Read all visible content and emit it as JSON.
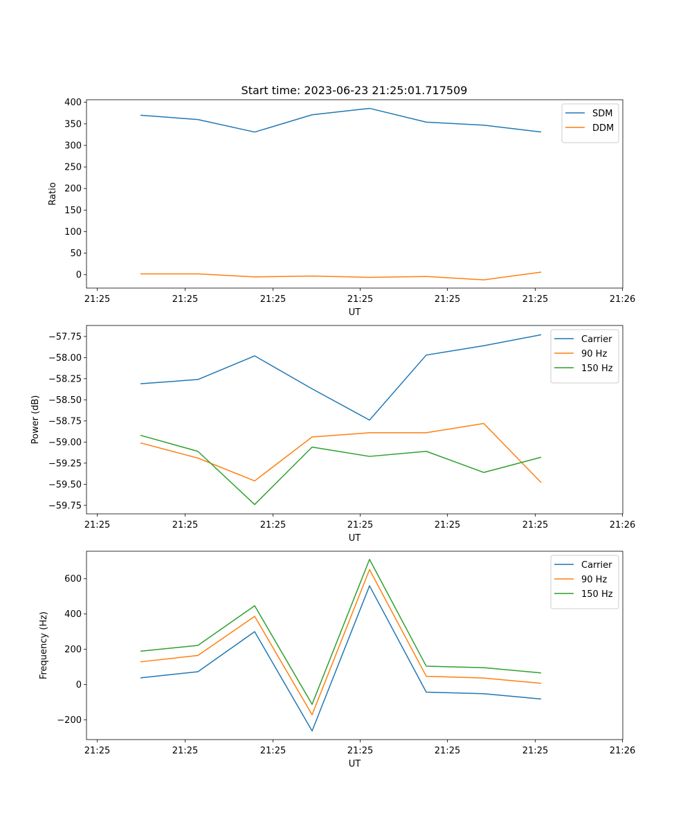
{
  "title": "Start time: 2023-06-23 21:25:01.717509",
  "colors": {
    "blue": "#1f77b4",
    "orange": "#ff7f0e",
    "green": "#2ca02c"
  },
  "chart_data": [
    {
      "type": "line",
      "ylabel": "Ratio",
      "xlabel": "UT",
      "x_tick_labels": [
        "21:25",
        "21:25",
        "21:25",
        "21:25",
        "21:25",
        "21:25",
        "21:25",
        "21:26"
      ],
      "y_ticks": [
        0,
        50,
        100,
        150,
        200,
        250,
        300,
        350,
        400
      ],
      "y_tick_labels": [
        "0",
        "50",
        "100",
        "150",
        "200",
        "250",
        "300",
        "350",
        "400"
      ],
      "ylim": [
        -31,
        406
      ],
      "legend": "top-right",
      "series": [
        {
          "name": "SDM",
          "color": "blue",
          "values": [
            370,
            360,
            331,
            371,
            386,
            354,
            347,
            331
          ]
        },
        {
          "name": "DDM",
          "color": "orange",
          "values": [
            2,
            2,
            -5,
            -3,
            -6,
            -4,
            -12,
            6
          ]
        }
      ]
    },
    {
      "type": "line",
      "ylabel": "Power (dB)",
      "xlabel": "UT",
      "x_tick_labels": [
        "21:25",
        "21:25",
        "21:25",
        "21:25",
        "21:25",
        "21:25",
        "21:25",
        "21:26"
      ],
      "y_ticks": [
        -59.75,
        -59.5,
        -59.25,
        -59.0,
        -58.75,
        -58.5,
        -58.25,
        -58.0,
        -57.75
      ],
      "y_tick_labels": [
        "−59.75",
        "−59.50",
        "−59.25",
        "−59.00",
        "−58.75",
        "−58.50",
        "−58.25",
        "−58.00",
        "−57.75"
      ],
      "ylim": [
        -59.85,
        -57.62
      ],
      "legend": "top-right",
      "series": [
        {
          "name": "Carrier",
          "color": "blue",
          "values": [
            -58.31,
            -58.26,
            -57.98,
            -58.37,
            -58.74,
            -57.97,
            -57.86,
            -57.73
          ]
        },
        {
          "name": "90 Hz",
          "color": "orange",
          "values": [
            -59.01,
            -59.19,
            -59.46,
            -58.94,
            -58.89,
            -58.89,
            -58.78,
            -59.48
          ]
        },
        {
          "name": "150 Hz",
          "color": "green",
          "values": [
            -58.92,
            -59.11,
            -59.74,
            -59.06,
            -59.17,
            -59.11,
            -59.36,
            -59.18
          ]
        }
      ]
    },
    {
      "type": "line",
      "ylabel": "Frequency (Hz)",
      "xlabel": "UT",
      "x_tick_labels": [
        "21:25",
        "21:25",
        "21:25",
        "21:25",
        "21:25",
        "21:25",
        "21:25",
        "21:26"
      ],
      "y_ticks": [
        -200,
        0,
        200,
        400,
        600
      ],
      "y_tick_labels": [
        "−200",
        "0",
        "200",
        "400",
        "600"
      ],
      "ylim": [
        -312,
        756
      ],
      "legend": "top-right",
      "series": [
        {
          "name": "Carrier",
          "color": "blue",
          "values": [
            38,
            73,
            300,
            -263,
            560,
            -43,
            -52,
            -82
          ]
        },
        {
          "name": "90 Hz",
          "color": "orange",
          "values": [
            129,
            165,
            387,
            -171,
            652,
            47,
            37,
            7
          ]
        },
        {
          "name": "150 Hz",
          "color": "green",
          "values": [
            189,
            222,
            447,
            -112,
            710,
            104,
            96,
            66
          ]
        }
      ]
    }
  ]
}
